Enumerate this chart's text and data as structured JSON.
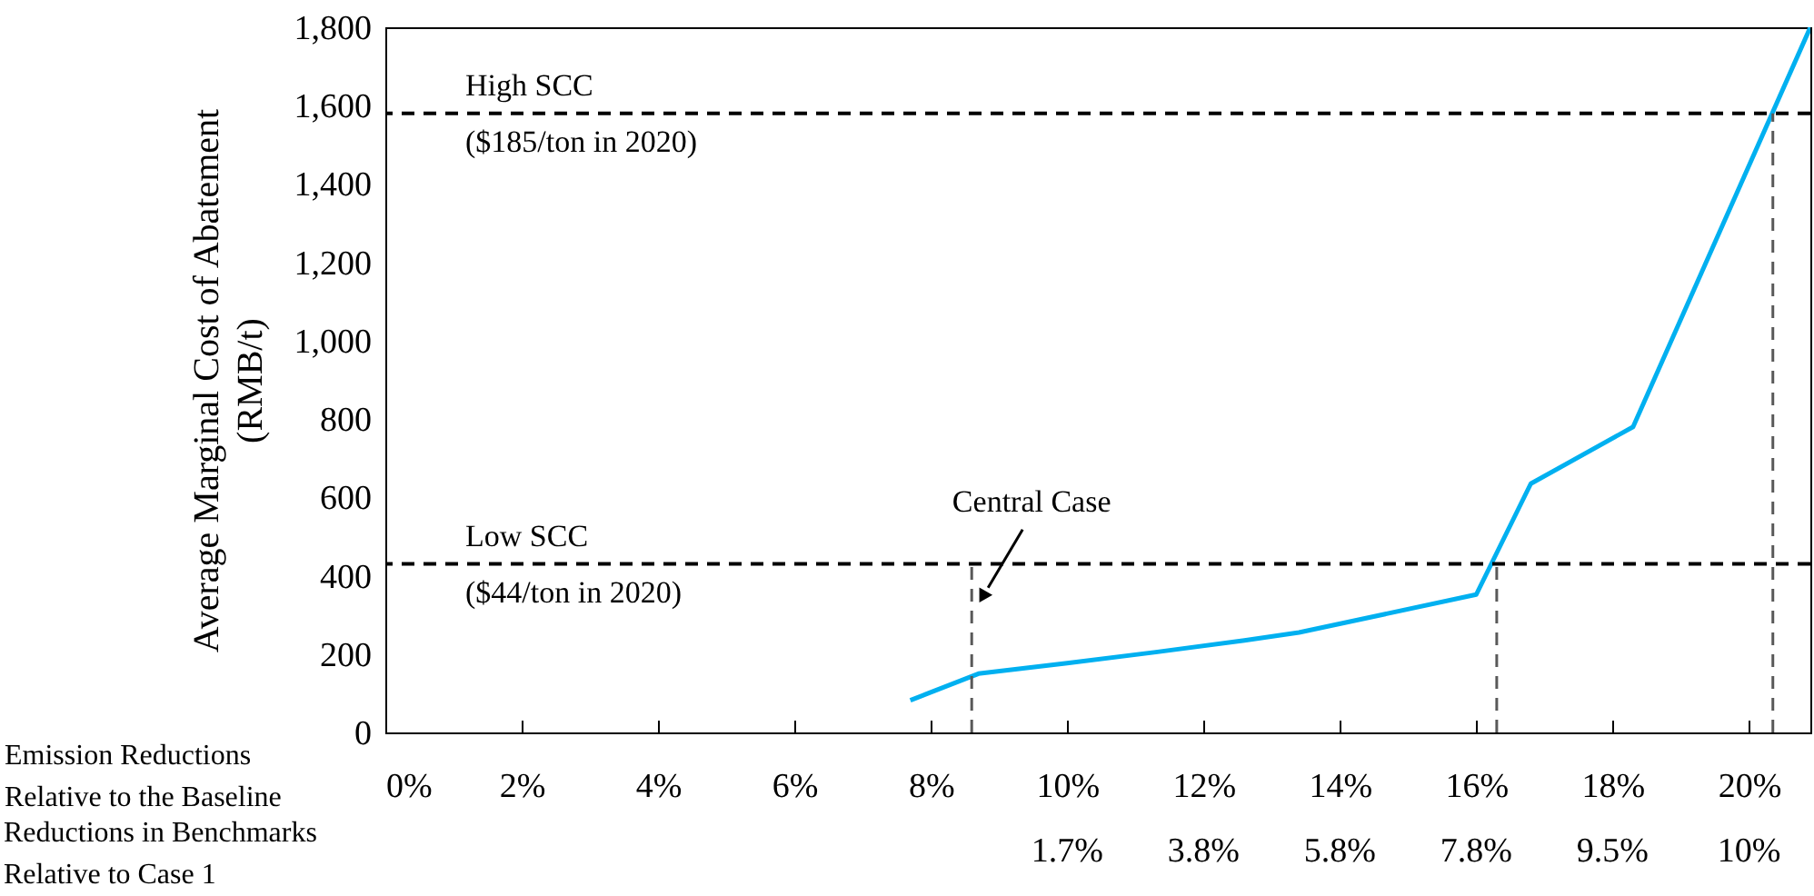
{
  "chart_data": {
    "type": "line",
    "ylabel": "Average Marginal Cost of Abatement\n(RMB/t)",
    "xlabel": "Emission Reductions\nRelative to the Baseline",
    "xlim": [
      0,
      20.9
    ],
    "xticks": [
      {
        "value": 0,
        "label": "0%"
      },
      {
        "value": 2,
        "label": "2%"
      },
      {
        "value": 4,
        "label": "4%"
      },
      {
        "value": 6,
        "label": "6%"
      },
      {
        "value": 8,
        "label": "8%"
      },
      {
        "value": 10,
        "label": "10%"
      },
      {
        "value": 12,
        "label": "12%"
      },
      {
        "value": 14,
        "label": "14%"
      },
      {
        "value": 16,
        "label": "16%"
      },
      {
        "value": 18,
        "label": "18%"
      },
      {
        "value": 20,
        "label": "20%"
      }
    ],
    "ylim": [
      0,
      1800
    ],
    "yticks": [
      0,
      200,
      400,
      600,
      800,
      {
        "value": 1000,
        "label": "1,000"
      },
      {
        "value": 1200,
        "label": "1,200"
      },
      {
        "value": 1400,
        "label": "1,400"
      },
      {
        "value": 1600,
        "label": "1,600"
      },
      {
        "value": 1800,
        "label": "1,800"
      }
    ],
    "series": [
      {
        "color": "#00b0f0",
        "line_style": "solid",
        "x": [
          7.7,
          8.7,
          10,
          11.3,
          12.6,
          13.4,
          16.0,
          16.8,
          18.3,
          20.9
        ],
        "values": [
          82,
          150,
          177,
          205,
          235,
          255,
          352,
          635,
          780,
          1800
        ]
      },
      {
        "color": "#595959",
        "line_style": "dashed",
        "x": [
          8.6,
          8.6
        ],
        "values": [
          0,
          430
        ]
      },
      {
        "color": "#595959",
        "line_style": "dashed",
        "x": [
          16.3,
          16.3
        ],
        "values": [
          0,
          430
        ]
      },
      {
        "color": "#595959",
        "line_style": "dashed",
        "x": [
          20.35,
          20.35
        ],
        "values": [
          0,
          1580
        ]
      }
    ],
    "ref_lines": [
      {
        "axis": "y",
        "value": 1580,
        "label": "High SCC\n($185/ton in 2020)",
        "color": "#000000",
        "line_style": "dashed"
      },
      {
        "axis": "y",
        "value": 430,
        "label": "Low SCC\n($44/ton in 2020)",
        "color": "#000000",
        "line_style": "dashed"
      }
    ],
    "annotations": [
      {
        "text": "Central Case",
        "x": 8.76,
        "y": 346
      },
      "Reductions in Benchmarks\nRelative to Case 1",
      "1.7%",
      "3.8%",
      "5.8%",
      "7.8%",
      "9.5%",
      "10%"
    ],
    "grid": false,
    "marker": "none"
  }
}
